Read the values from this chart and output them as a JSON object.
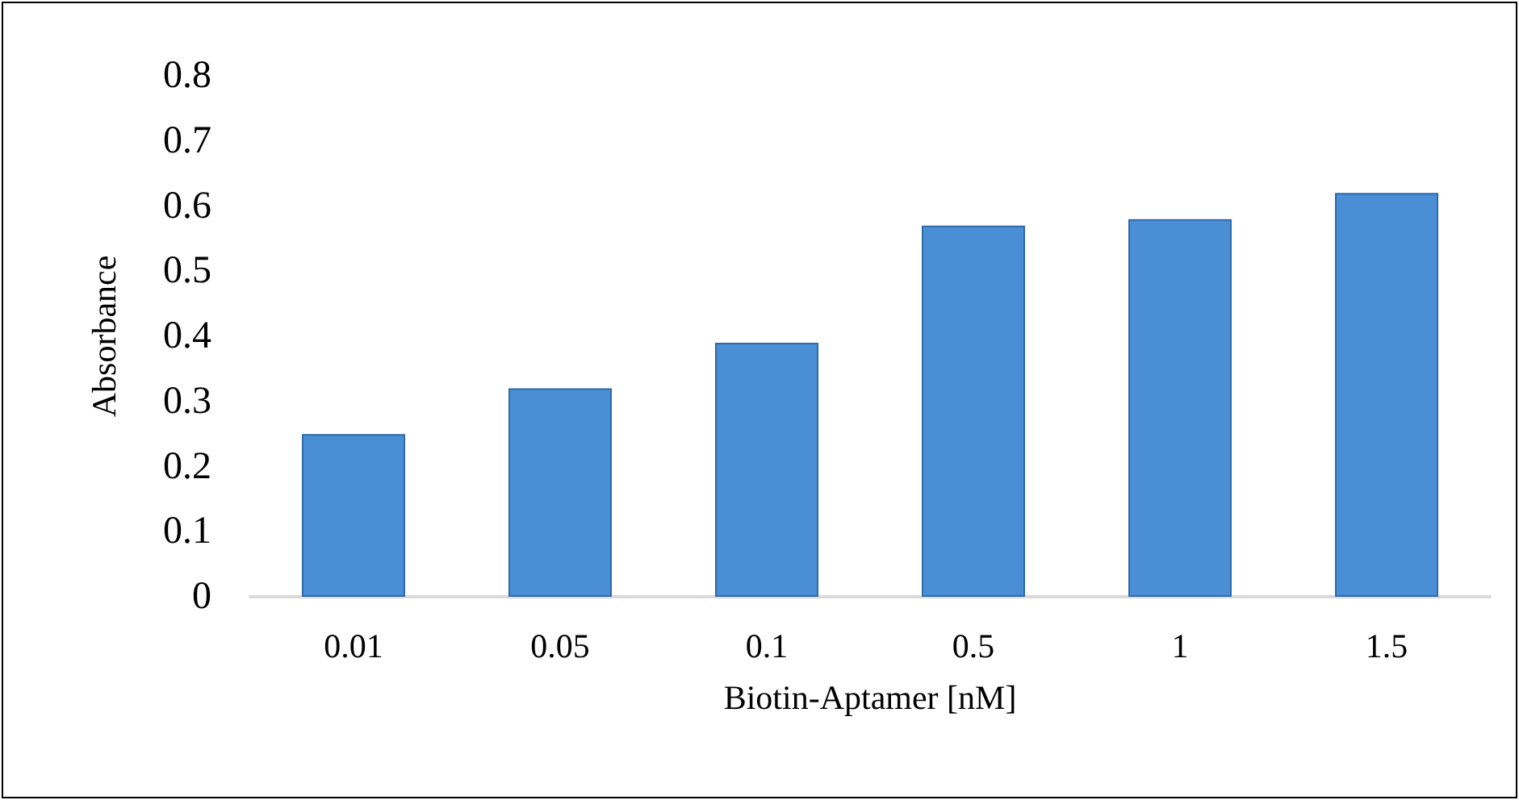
{
  "chart_data": {
    "type": "bar",
    "xlabel": "Biotin-Aptamer [nM]",
    "ylabel": "Absorbance",
    "categories": [
      "0.01",
      "0.05",
      "0.1",
      "0.5",
      "1",
      "1.5"
    ],
    "values": [
      0.25,
      0.32,
      0.39,
      0.57,
      0.58,
      0.62
    ],
    "color": "#4a8fd6",
    "ylim": [
      0,
      0.8
    ],
    "yticks": [
      0,
      0.1,
      0.2,
      0.3,
      0.4,
      0.5,
      0.6,
      0.7,
      0.8
    ],
    "grid": false
  }
}
